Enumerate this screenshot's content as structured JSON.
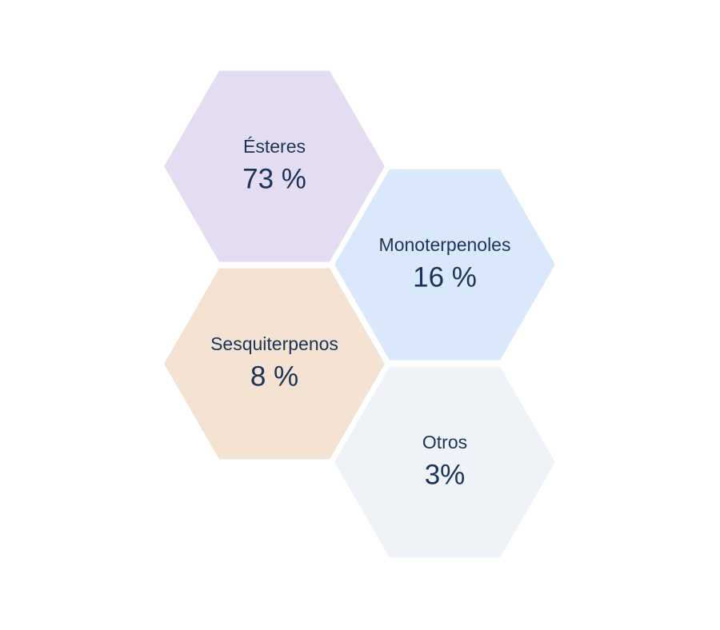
{
  "nodes": [
    {
      "label": "Ésteres",
      "value": "73 %"
    },
    {
      "label": "Monoterpenoles",
      "value": "16 %"
    },
    {
      "label": "Sesquiterpenos",
      "value": "8 %"
    },
    {
      "label": "Otros",
      "value": "3%"
    }
  ]
}
